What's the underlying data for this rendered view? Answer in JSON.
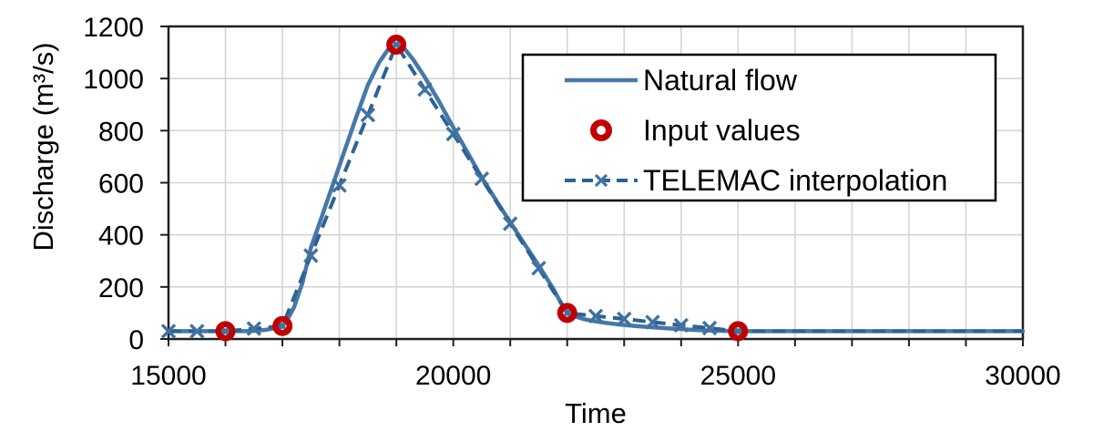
{
  "chart_data": {
    "type": "line",
    "title": "",
    "x_axis": {
      "label": "Time",
      "min": 15000,
      "max": 30000,
      "major_ticks": [
        15000,
        20000,
        25000,
        30000
      ],
      "minor_tick_step": 1000,
      "gridline_step": 1000
    },
    "y_axis": {
      "label": "Discharge (m³/s)",
      "min": 0,
      "max": 1200,
      "ticks": [
        0,
        200,
        400,
        600,
        800,
        1000,
        1200
      ],
      "gridline_step": 200
    },
    "grid": true,
    "legend_position": "top-right-inside",
    "colors": {
      "natural_flow_line": "#4678A9",
      "telemac_line": "#2F6194",
      "marker_blue": "#41729F",
      "input_red": "#C00000",
      "grid": "#D5D5D5",
      "axis": "#1F1F1F",
      "text": "#000000",
      "legend_border": "#000000",
      "background": "#FFFFFF"
    },
    "series": [
      {
        "name": "Natural flow",
        "type": "line",
        "line_style": "solid",
        "points": [
          [
            15000,
            30
          ],
          [
            15500,
            30
          ],
          [
            16000,
            30
          ],
          [
            16300,
            30
          ],
          [
            16500,
            31
          ],
          [
            16700,
            35
          ],
          [
            16850,
            41
          ],
          [
            17000,
            50
          ],
          [
            17100,
            80
          ],
          [
            17200,
            120
          ],
          [
            17350,
            215
          ],
          [
            17500,
            350
          ],
          [
            17700,
            475
          ],
          [
            18000,
            665
          ],
          [
            18300,
            855
          ],
          [
            18500,
            975
          ],
          [
            18700,
            1063
          ],
          [
            18850,
            1110
          ],
          [
            19000,
            1130
          ],
          [
            19150,
            1113
          ],
          [
            19300,
            1072
          ],
          [
            19500,
            1005
          ],
          [
            19750,
            912
          ],
          [
            20000,
            812
          ],
          [
            20250,
            716
          ],
          [
            20500,
            620
          ],
          [
            20750,
            533
          ],
          [
            21000,
            448
          ],
          [
            21250,
            365
          ],
          [
            21500,
            282
          ],
          [
            21750,
            195
          ],
          [
            21900,
            135
          ],
          [
            22000,
            100
          ],
          [
            22150,
            86
          ],
          [
            22300,
            76
          ],
          [
            22500,
            68
          ],
          [
            22750,
            60
          ],
          [
            23000,
            54
          ],
          [
            23250,
            49
          ],
          [
            23500,
            45
          ],
          [
            23750,
            41
          ],
          [
            24000,
            38
          ],
          [
            24300,
            34
          ],
          [
            24600,
            32
          ],
          [
            25000,
            30
          ],
          [
            25500,
            30
          ],
          [
            26000,
            30
          ],
          [
            27000,
            30
          ],
          [
            28000,
            30
          ],
          [
            29000,
            30
          ],
          [
            30000,
            30
          ]
        ]
      },
      {
        "name": "Input values",
        "type": "scatter",
        "marker": "open-circle",
        "points": [
          [
            16000,
            30
          ],
          [
            17000,
            50
          ],
          [
            19000,
            1130
          ],
          [
            22000,
            100
          ],
          [
            25000,
            30
          ]
        ]
      },
      {
        "name": "TELEMAC interpolation",
        "type": "line",
        "line_style": "dashed",
        "marker": "x",
        "marker_last_t": 25000,
        "points": [
          [
            15000,
            30
          ],
          [
            15500,
            30
          ],
          [
            16000,
            30
          ],
          [
            16500,
            40
          ],
          [
            17000,
            50
          ],
          [
            17500,
            320
          ],
          [
            18000,
            590
          ],
          [
            18500,
            860
          ],
          [
            19000,
            1130
          ],
          [
            19500,
            958
          ],
          [
            20000,
            787
          ],
          [
            20500,
            615
          ],
          [
            21000,
            443
          ],
          [
            21500,
            272
          ],
          [
            22000,
            100
          ],
          [
            22500,
            88
          ],
          [
            23000,
            77
          ],
          [
            23500,
            65
          ],
          [
            24000,
            53
          ],
          [
            24500,
            42
          ],
          [
            25000,
            30
          ],
          [
            26000,
            30
          ],
          [
            27000,
            30
          ],
          [
            28000,
            30
          ],
          [
            29000,
            30
          ],
          [
            30000,
            30
          ]
        ]
      }
    ]
  }
}
